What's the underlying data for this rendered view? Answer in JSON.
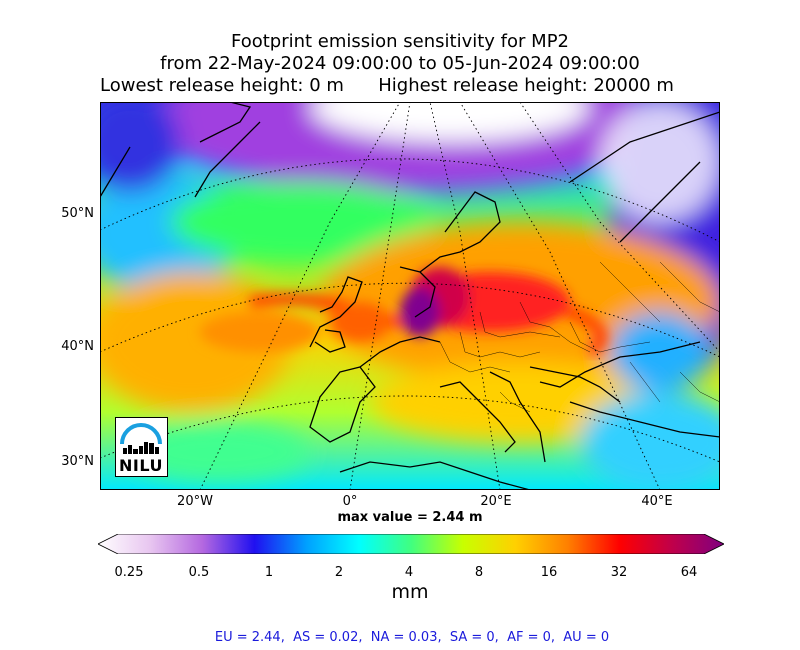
{
  "title": {
    "line1": "Footprint emission sensitivity for MP2",
    "line2": "from 22-May-2024 09:00:00 to 05-Jun-2024 09:00:00",
    "line3": "Lowest release height: 0 m      Highest release height: 20000 m"
  },
  "map": {
    "lat_labels": [
      "50°N",
      "40°N",
      "30°N"
    ],
    "lon_labels": [
      "20°W",
      "0°",
      "20°E",
      "40°E"
    ],
    "max_value_label": "max value = 2.44 m",
    "logo_text": "NILU"
  },
  "colorbar": {
    "ticks": [
      "0.25",
      "0.5",
      "1",
      "2",
      "4",
      "8",
      "16",
      "32",
      "64"
    ],
    "unit": "mm",
    "colors": [
      "#ffffff",
      "#e8c6f0",
      "#b468e0",
      "#2010f0",
      "#00a0ff",
      "#00ffff",
      "#40ff80",
      "#c8ff00",
      "#ffd000",
      "#ff8000",
      "#ff0000",
      "#c0004a",
      "#800080"
    ]
  },
  "footer": "EU = 2.44,  AS = 0.02,  NA = 0.03,  SA = 0,  AF = 0,  AU = 0"
}
